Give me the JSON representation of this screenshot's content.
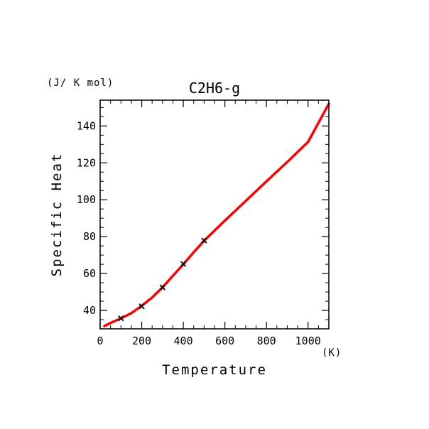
{
  "chart_data": {
    "type": "line",
    "title": "C2H6-g",
    "xlabel": "Temperature",
    "ylabel": "Specific Heat",
    "x_unit": "(K)",
    "y_unit": "(J/ K mol)",
    "xlim": [
      0,
      1100
    ],
    "ylim": [
      30,
      154
    ],
    "x_ticks": [
      0,
      200,
      400,
      600,
      800,
      1000
    ],
    "y_ticks": [
      40,
      60,
      80,
      100,
      120,
      140
    ],
    "grid": false,
    "series": [
      {
        "color": "#ff0000",
        "x": [
          20,
          50,
          100,
          150,
          200,
          250,
          300,
          350,
          400,
          450,
          500,
          600,
          700,
          800,
          900,
          1000,
          1100
        ],
        "y": [
          31.5,
          33.2,
          35.7,
          38.5,
          42.5,
          47.0,
          52.5,
          58.8,
          65.0,
          71.5,
          77.8,
          88.7,
          99.3,
          110.0,
          120.5,
          131.3,
          152.0
        ]
      }
    ],
    "markers": {
      "symbol": "x",
      "x": [
        100,
        200,
        300,
        400,
        500
      ],
      "y": [
        35.7,
        42.2,
        52.5,
        65.2,
        77.9
      ]
    }
  }
}
